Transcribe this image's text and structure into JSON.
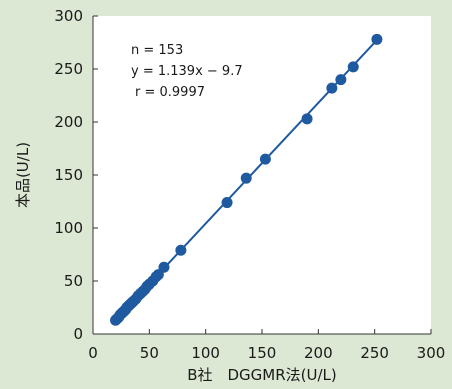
{
  "colors": {
    "background": "#dde8d4",
    "plot_area": "#ffffff",
    "series": "#1f5aa0",
    "axis": "#333333",
    "text": "#1a1a1a"
  },
  "chart_data": {
    "type": "scatter",
    "xlabel": "B社　DGGMR法(U/L)",
    "ylabel": "本品(U/L)",
    "xlim": [
      0,
      300
    ],
    "ylim": [
      0,
      300
    ],
    "x_ticks": [
      0,
      50,
      100,
      150,
      200,
      250,
      300
    ],
    "y_ticks": [
      0,
      50,
      100,
      150,
      200,
      250,
      300
    ],
    "grid": false,
    "annotations": [
      "n = 153",
      "y = 1.139x − 9.7",
      "r = 0.9997"
    ],
    "regression": {
      "slope": 1.139,
      "intercept": -9.7
    },
    "series": [
      {
        "x": [
          20,
          21,
          22,
          23,
          24,
          25,
          26,
          27,
          28,
          29,
          30,
          31,
          32,
          33,
          34,
          35,
          36,
          38,
          40,
          42,
          44,
          46,
          48,
          50,
          53,
          56,
          58,
          63,
          78,
          119,
          136,
          153,
          190,
          212,
          220,
          231,
          252
        ],
        "y": [
          13,
          14,
          15,
          16,
          18,
          19,
          20,
          21,
          22,
          23,
          25,
          26,
          27,
          28,
          29,
          30,
          31,
          33,
          36,
          38,
          40,
          42,
          45,
          47,
          50,
          54,
          56,
          63,
          79,
          124,
          147,
          165,
          203,
          232,
          240,
          252,
          278
        ]
      }
    ]
  }
}
